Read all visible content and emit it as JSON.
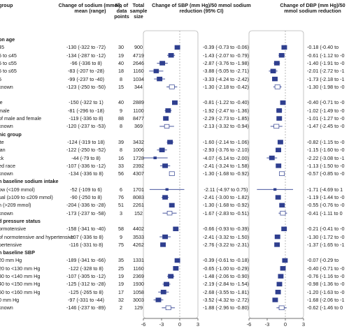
{
  "chart_data": {
    "type": "forest",
    "columns": {
      "subgroup": "...group",
      "change_sodium": "Change of sodium (mmol), mean (range)",
      "n_points": "No of data points",
      "sample": "Total sample size",
      "sbp": "Change of SBP (mm Hg)/50 mmol sodium reduction (95% CI)",
      "dbp": "Change of DBP (mm Hg)/50 mmol sodium reduction"
    },
    "axis": {
      "ticks": [
        -6,
        -3,
        0,
        3
      ],
      "xlim": [
        -6,
        3
      ]
    },
    "rows": [
      {
        "type": "header",
        "label": "...on age"
      },
      {
        "label": "...45",
        "sodium": "-130 (-322 to -72)",
        "n": "30",
        "size": "900",
        "sbp_text": "-0.39 (-0.73 to -0.06)",
        "sbp": [
          -0.39,
          -0.73,
          -0.06
        ],
        "dbp_text": "-0.18 (-0.40 to",
        "dbp": [
          -0.18,
          -0.4,
          0.04
        ]
      },
      {
        "label": "...5 to ≤45",
        "sodium": "-134 (-287 to -12)",
        "n": "19",
        "size": "4719",
        "sbp_text": "-1.43 (-2.07 to -0.79)",
        "sbp": [
          -1.43,
          -2.07,
          -0.79
        ],
        "dbp_text": "-0.61 (-1.12 to -0",
        "dbp": [
          -0.61,
          -1.12,
          -0.1
        ]
      },
      {
        "label": "...5 to ≤55",
        "sodium": "-96 (-336 to 8)",
        "n": "40",
        "size": "2646",
        "sbp_text": "-2.87 (-3.76 to -1.98)",
        "sbp": [
          -2.87,
          -3.76,
          -1.98
        ],
        "dbp_text": "-1.40 (-1.91 to -0",
        "dbp": [
          -1.4,
          -1.91,
          -0.89
        ]
      },
      {
        "label": "...5 to ≤65",
        "sodium": "-83 (-207 to -28)",
        "n": "18",
        "size": "1160",
        "sbp_text": "-3.88 (-5.05 to -2.71)",
        "sbp": [
          -3.88,
          -5.05,
          -2.71
        ],
        "dbp_text": "-2.01 (-2.72 to -1",
        "dbp": [
          -2.01,
          -2.72,
          -1.3
        ]
      },
      {
        "label": "...5",
        "sodium": "-99 (-237 to -40)",
        "n": "8",
        "size": "1034",
        "sbp_text": "-3.33 (-4.24 to -2.42)",
        "sbp": [
          -3.33,
          -4.24,
          -2.42
        ],
        "dbp_text": "-1.73 (-2.18 to -1",
        "dbp": [
          -1.73,
          -2.18,
          -1.28
        ]
      },
      {
        "label": "...known",
        "sodium": "-123 (-250 to -50)",
        "n": "15",
        "size": "344",
        "sbp_text": "-1.30 (-2.18 to -0.42)",
        "sbp": [
          -1.3,
          -2.18,
          -0.42
        ],
        "dbp_text": "-1.30 (-1.98 to -0",
        "dbp": [
          -1.3,
          -1.98,
          -0.62
        ],
        "open": true
      },
      {
        "type": "header",
        "label": ""
      },
      {
        "label": "...le",
        "sodium": "-150 (-322 to 1)",
        "n": "40",
        "size": "2889",
        "sbp_text": "-0.81 (-1.22 to -0.40)",
        "sbp": [
          -0.81,
          -1.22,
          -0.4
        ],
        "dbp_text": "-0.40 (-0.71 to -0",
        "dbp": [
          -0.4,
          -0.71,
          -0.09
        ]
      },
      {
        "label": "...male",
        "sodium": "-81 (-296 to -18)",
        "n": "9",
        "size": "1100",
        "sbp_text": "-1.92 (-2.47 to -1.36)",
        "sbp": [
          -1.92,
          -2.47,
          -1.36
        ],
        "dbp_text": "-1.02 (-1.49 to -0",
        "dbp": [
          -1.02,
          -1.49,
          -0.55
        ]
      },
      {
        "label": "...of male and female",
        "sodium": "-119 (-336 to 8)",
        "n": "88",
        "size": "8477",
        "sbp_text": "-2.29 (-2.73 to -1.85)",
        "sbp": [
          -2.29,
          -2.73,
          -1.85
        ],
        "dbp_text": "-1.01 (-1.27 to -0",
        "dbp": [
          -1.01,
          -1.27,
          -0.75
        ]
      },
      {
        "label": "...known",
        "sodium": "-120 (-237 to -53)",
        "n": "8",
        "size": "369",
        "sbp_text": "-2.13 (-3.32 to -0.94)",
        "sbp": [
          -2.13,
          -3.32,
          -0.94
        ],
        "dbp_text": "-1.47 (-2.45 to -0",
        "dbp": [
          -1.47,
          -2.45,
          -0.49
        ],
        "open": true
      },
      {
        "type": "header",
        "label": "...nic group"
      },
      {
        "label": "...ite",
        "sodium": "-124 (-319 to 18)",
        "n": "39",
        "size": "3432",
        "sbp_text": "-1.60 (-2.14 to -1.06)",
        "sbp": [
          -1.6,
          -2.14,
          -1.06
        ],
        "dbp_text": "-0.82 (-1.15 to -0",
        "dbp": [
          -0.82,
          -1.15,
          -0.49
        ]
      },
      {
        "label": "...ian",
        "sodium": "-122 (-250 to -52)",
        "n": "8",
        "size": "1006",
        "sbp_text": "-2.93 (-3.76 to -2.10)",
        "sbp": [
          -2.93,
          -3.76,
          -2.1
        ],
        "dbp_text": "-1.15 (-1.60 to -0",
        "dbp": [
          -1.15,
          -1.6,
          -0.7
        ]
      },
      {
        "label": "...ck",
        "sodium": "-44 (-79 to 8)",
        "n": "16",
        "size": "1728",
        "sbp_text": "-4.07 (-6.14 to -2.00)",
        "sbp": [
          -4.07,
          -6.14,
          -2.0
        ],
        "dbp_text": "-2.22 (-3.08 to -1",
        "dbp": [
          -2.22,
          -3.08,
          -1.36
        ]
      },
      {
        "label": "...ed race",
        "sodium": "-107 (-336 to -12)",
        "n": "33",
        "size": "2392",
        "sbp_text": "-2.41 (-3.24 to -1.58)",
        "sbp": [
          -2.41,
          -3.24,
          -1.58
        ],
        "dbp_text": "-1.13 (-1.50 to -0",
        "dbp": [
          -1.13,
          -1.5,
          -0.76
        ]
      },
      {
        "label": "...known",
        "sodium": "-134 (-336 to 8)",
        "n": "56",
        "size": "4307",
        "sbp_text": "-1.30 (-1.68 to -0.92)",
        "sbp": [
          -1.3,
          -1.68,
          -0.92
        ],
        "dbp_text": "-0.57 (-0.85 to -0",
        "dbp": [
          -0.57,
          -0.85,
          -0.29
        ],
        "open": true
      },
      {
        "type": "header",
        "label": "...n baseline sodium intake"
      },
      {
        "label": "...ow (<109 mmol)",
        "sodium": "-52 (-109 to 6)",
        "n": "6",
        "size": "1701",
        "sbp_text": "-2.11 (-4.97 to 0.75)",
        "sbp": [
          -2.11,
          -4.97,
          0.75
        ],
        "dbp_text": "-1.71 (-4.69 to 1",
        "dbp": [
          -1.71,
          -4.69,
          1.27
        ]
      },
      {
        "label": "...ual (≥109 to ≤209 mmol)",
        "sodium": "-90 (-250 to 8)",
        "n": "76",
        "size": "8083",
        "sbp_text": "-2.41 (-3.00 to -1.82)",
        "sbp": [
          -2.41,
          -3.0,
          -1.82
        ],
        "dbp_text": "-1.19 (-1.44 to -0",
        "dbp": [
          -1.19,
          -1.44,
          -0.94
        ]
      },
      {
        "label": "...h (>209 mmol)",
        "sodium": "-204 (-336 to -28)",
        "n": "51",
        "size": "2261",
        "sbp_text": "-1.30 (-1.68 to -0.92)",
        "sbp": [
          -1.3,
          -1.68,
          -0.92
        ],
        "dbp_text": "-0.55 (-0.76 to -0",
        "dbp": [
          -0.55,
          -0.76,
          -0.34
        ]
      },
      {
        "label": "...known",
        "sodium": "-173 (-237 to -58)",
        "n": "3",
        "size": "152",
        "sbp_text": "-1.67 (-2.83 to -0.51)",
        "sbp": [
          -1.67,
          -2.83,
          -0.51
        ],
        "dbp_text": "-0.41 (-1.11 to 0",
        "dbp": [
          -0.41,
          -1.11,
          0.29
        ],
        "open": true
      },
      {
        "type": "header",
        "label": "...d pressure status"
      },
      {
        "label": "...ormotensive",
        "sodium": "-158 (-341 to -40)",
        "n": "58",
        "size": "4402",
        "sbp_text": "-0.66 (-0.93 to -0.39)",
        "sbp": [
          -0.66,
          -0.93,
          -0.39
        ],
        "dbp_text": "-0.21 (-0.41 to -0",
        "dbp": [
          -0.21,
          -0.41,
          -0.01
        ]
      },
      {
        "label": "...of normotensive and hypertensive",
        "sodium": "-107 (-336 to 8)",
        "n": "9",
        "size": "3533",
        "sbp_text": "-2.41 (-3.32 to -1.50)",
        "sbp": [
          -2.41,
          -3.32,
          -1.5
        ],
        "dbp_text": "-1.30 (-1.72 to -0",
        "dbp": [
          -1.3,
          -1.72,
          -0.88
        ]
      },
      {
        "label": "...pertensive",
        "sodium": "-116 (-331 to 8)",
        "n": "75",
        "size": "4262",
        "sbp_text": "-2.76 (-3.22 to -2.31)",
        "sbp": [
          -2.76,
          -3.22,
          -2.31
        ],
        "dbp_text": "-1.37 (-1.65 to -1",
        "dbp": [
          -1.37,
          -1.65,
          -1.09
        ]
      },
      {
        "type": "header",
        "label": "...n baseline SBP"
      },
      {
        "label": "...20 mm Hg",
        "sodium": "-189 (-341 to -66)",
        "n": "35",
        "size": "1331",
        "sbp_text": "-0.39 (-0.61 to -0.18)",
        "sbp": [
          -0.39,
          -0.61,
          -0.18
        ],
        "dbp_text": "-0.07 (-0.29 to",
        "dbp": [
          -0.07,
          -0.29,
          0.15
        ]
      },
      {
        "label": "...20 to <130 mm Hg",
        "sodium": "-122 (-328 to 8)",
        "n": "25",
        "size": "1160",
        "sbp_text": "-0.65 (-1.00 to -0.29)",
        "sbp": [
          -0.65,
          -1.0,
          -0.29
        ],
        "dbp_text": "-0.40 (-0.71 to -0",
        "dbp": [
          -0.4,
          -0.71,
          -0.09
        ]
      },
      {
        "label": "...30 to <140 mm Hg",
        "sodium": "-107 (-305 to -12)",
        "n": "19",
        "size": "2369",
        "sbp_text": "-1.48 (-2.06 to -0.90)",
        "sbp": [
          -1.48,
          -2.06,
          -0.9
        ],
        "dbp_text": "-0.76 (-1.16 to -0",
        "dbp": [
          -0.76,
          -1.16,
          -0.36
        ]
      },
      {
        "label": "...40 to <150 mm Hg",
        "sodium": "-125 (-312 to -28)",
        "n": "19",
        "size": "1930",
        "sbp_text": "-2.19 (-2.84 to -1.54)",
        "sbp": [
          -2.19,
          -2.84,
          -1.54
        ],
        "dbp_text": "-0.98 (-1.36 to -0",
        "dbp": [
          -0.98,
          -1.36,
          -0.6
        ]
      },
      {
        "label": "...50 to <160 mm Hg",
        "sodium": "-125 (-265 to 8)",
        "n": "17",
        "size": "1058",
        "sbp_text": "-2.68 (-3.55 to -1.81)",
        "sbp": [
          -2.68,
          -3.55,
          -1.81
        ],
        "dbp_text": "-1.20 (-1.63 to -0",
        "dbp": [
          -1.2,
          -1.63,
          -0.77
        ]
      },
      {
        "label": "...0 mm Hg",
        "sodium": "-97 (-331 to -44)",
        "n": "32",
        "size": "3003",
        "sbp_text": "-3.52 (-4.32 to -2.72)",
        "sbp": [
          -3.52,
          -4.32,
          -2.72
        ],
        "dbp_text": "-1.68 (-2.06 to -1",
        "dbp": [
          -1.68,
          -2.06,
          -1.3
        ]
      },
      {
        "label": "...known",
        "sodium": "-146 (-237 to -89)",
        "n": "2",
        "size": "129",
        "sbp_text": "-1.88 (-2.96 to -0.80)",
        "sbp": [
          -1.88,
          -2.96,
          -0.8
        ],
        "dbp_text": "-0.62 (-1.46 to 0",
        "dbp": [
          -0.62,
          -1.46,
          0.22
        ],
        "open": true
      }
    ]
  }
}
